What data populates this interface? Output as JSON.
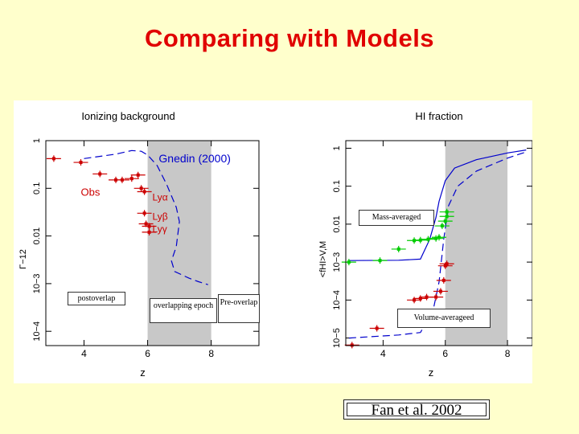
{
  "slide": {
    "title": "Comparing with Models",
    "citation": "Fan et al. 2002",
    "notes": {
      "postoverlap": "postoverlap",
      "overlapping": "overlapping epoch",
      "preoverlap": "Pre-overlap",
      "mass": "Mass-averaged",
      "volume": "Volume-averageed"
    }
  },
  "colors": {
    "obs_red": "#cc0000",
    "obs_green": "#00cc00",
    "model_blue": "#0000cc",
    "shade": "#c8c8c8"
  },
  "chart_data": [
    {
      "type": "scatter",
      "title": "Ionizing background",
      "xlabel": "z",
      "ylabel": "Γ−12",
      "xlim": [
        2.8,
        9.5
      ],
      "ylim": [
        -4.3,
        0
      ],
      "y_scale": "log",
      "xticks": [
        "4",
        "6",
        "8"
      ],
      "yticks": [
        "1",
        "0.1",
        "0.01",
        "10−3",
        "10−4"
      ],
      "shaded_region": [
        6.0,
        8.0
      ],
      "labels": {
        "model": "Gnedin (2000)",
        "obs": "Obs",
        "lya": "Lyα",
        "lyb": "Lyβ",
        "lyg": "Lyγ"
      },
      "series": [
        {
          "name": "Gnedin (2000)",
          "style": "dashed",
          "points": [
            [
              4.0,
              0.42
            ],
            [
              5.0,
              0.52
            ],
            [
              5.5,
              0.62
            ],
            [
              5.8,
              0.6
            ],
            [
              6.0,
              0.5
            ],
            [
              6.3,
              0.3
            ],
            [
              6.6,
              0.12
            ],
            [
              6.9,
              0.04
            ],
            [
              7.0,
              0.02
            ],
            [
              6.9,
              0.006
            ],
            [
              6.75,
              0.003
            ],
            [
              6.85,
              0.0018
            ],
            [
              7.3,
              0.0013
            ],
            [
              7.6,
              0.0011
            ],
            [
              7.9,
              0.00095
            ]
          ]
        },
        {
          "name": "Obs",
          "points": [
            [
              3.05,
              0.42
            ],
            [
              3.9,
              0.35
            ],
            [
              4.5,
              0.2
            ],
            [
              5.0,
              0.15
            ],
            [
              5.2,
              0.15
            ],
            [
              5.5,
              0.16
            ],
            [
              5.7,
              0.19
            ],
            [
              5.8,
              0.1
            ],
            [
              5.9,
              0.085
            ],
            [
              5.9,
              0.03
            ],
            [
              5.95,
              0.018
            ],
            [
              6.05,
              0.016
            ],
            [
              6.05,
              0.012
            ]
          ]
        }
      ]
    },
    {
      "type": "scatter",
      "title": "HI fraction",
      "xlabel": "z",
      "ylabel": "<fHI>V,M",
      "xlim": [
        2.8,
        8.8
      ],
      "ylim": [
        -5.2,
        0.2
      ],
      "y_scale": "log",
      "xticks": [
        "4",
        "6",
        "8"
      ],
      "yticks": [
        "1",
        "0.1",
        "0.01",
        "10−3",
        "10−4",
        "10−5"
      ],
      "shaded_region": [
        6.0,
        8.0
      ],
      "series": [
        {
          "name": "Mass-averaged",
          "style": "solid",
          "points": [
            [
              2.9,
              0.0011
            ],
            [
              4.5,
              0.00112
            ],
            [
              5.2,
              0.0012
            ],
            [
              5.5,
              0.004
            ],
            [
              5.7,
              0.015
            ],
            [
              5.8,
              0.04
            ],
            [
              6.0,
              0.14
            ],
            [
              6.3,
              0.3
            ],
            [
              7.0,
              0.5
            ],
            [
              8.0,
              0.75
            ],
            [
              8.6,
              0.9
            ]
          ]
        },
        {
          "name": "Volume-averageed",
          "style": "dashed",
          "points": [
            [
              2.9,
              1e-05
            ],
            [
              4.5,
              1.2e-05
            ],
            [
              5.2,
              1.4e-05
            ],
            [
              5.6,
              5e-05
            ],
            [
              5.8,
              0.0003
            ],
            [
              5.95,
              0.004
            ],
            [
              6.1,
              0.03
            ],
            [
              6.4,
              0.1
            ],
            [
              7.0,
              0.25
            ],
            [
              8.0,
              0.55
            ],
            [
              8.6,
              0.8
            ]
          ]
        },
        {
          "name": "Mass-averaged data",
          "points": [
            [
              2.9,
              0.001
            ],
            [
              3.9,
              0.0011
            ],
            [
              4.5,
              0.0022
            ],
            [
              5.0,
              0.0037
            ],
            [
              5.2,
              0.0038
            ],
            [
              5.45,
              0.004
            ],
            [
              5.7,
              0.0042
            ],
            [
              5.8,
              0.0045
            ],
            [
              5.9,
              0.009
            ],
            [
              6.0,
              0.012
            ],
            [
              6.05,
              0.016
            ],
            [
              6.05,
              0.021
            ]
          ]
        },
        {
          "name": "Volume-averaged data",
          "points": [
            [
              3.0,
              6.5e-06
            ],
            [
              3.8,
              1.8e-05
            ],
            [
              5.0,
              0.0001
            ],
            [
              5.2,
              0.00011
            ],
            [
              5.4,
              0.00012
            ],
            [
              5.7,
              0.00012
            ],
            [
              5.85,
              0.00017
            ],
            [
              5.95,
              0.00033
            ],
            [
              6.0,
              0.0008
            ],
            [
              6.05,
              0.0009
            ]
          ]
        }
      ]
    }
  ]
}
